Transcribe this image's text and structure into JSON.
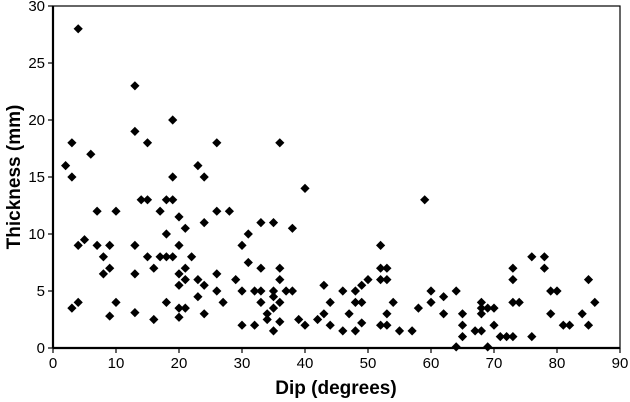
{
  "chart_data": {
    "type": "scatter",
    "title": "",
    "xlabel": "Dip (degrees)",
    "ylabel": "Thickness (mm)",
    "xlim": [
      0,
      90
    ],
    "ylim": [
      0,
      30
    ],
    "x_ticks": [
      0,
      10,
      20,
      30,
      40,
      50,
      60,
      70,
      80,
      90
    ],
    "y_ticks": [
      0,
      5,
      10,
      15,
      20,
      25,
      30
    ],
    "grid": false,
    "legend": null,
    "marker": "diamond",
    "marker_color": "#000000",
    "points": [
      [
        2,
        16
      ],
      [
        3,
        18
      ],
      [
        3,
        15
      ],
      [
        4,
        28
      ],
      [
        6,
        17
      ],
      [
        3,
        3.5
      ],
      [
        4,
        4
      ],
      [
        4,
        9
      ],
      [
        5,
        9.5
      ],
      [
        7,
        12
      ],
      [
        7,
        9
      ],
      [
        8,
        8
      ],
      [
        8,
        6.5
      ],
      [
        9,
        9
      ],
      [
        9,
        7
      ],
      [
        9,
        2.8
      ],
      [
        10,
        12
      ],
      [
        10,
        4
      ],
      [
        13,
        23
      ],
      [
        13,
        19
      ],
      [
        15,
        18
      ],
      [
        13,
        9
      ],
      [
        13,
        6.5
      ],
      [
        13,
        3.1
      ],
      [
        14,
        13
      ],
      [
        15,
        13
      ],
      [
        15,
        8
      ],
      [
        16,
        7
      ],
      [
        16,
        2.5
      ],
      [
        17,
        12
      ],
      [
        17,
        8
      ],
      [
        18,
        13
      ],
      [
        18,
        10
      ],
      [
        18,
        8
      ],
      [
        18,
        4
      ],
      [
        19,
        20
      ],
      [
        19,
        15
      ],
      [
        19,
        13
      ],
      [
        19,
        8
      ],
      [
        20,
        11.5
      ],
      [
        20,
        9
      ],
      [
        20,
        6.5
      ],
      [
        20,
        5.5
      ],
      [
        20,
        3.5
      ],
      [
        20,
        2.7
      ],
      [
        21,
        10.5
      ],
      [
        21,
        7
      ],
      [
        21,
        6
      ],
      [
        21,
        3.5
      ],
      [
        22,
        8
      ],
      [
        23,
        16
      ],
      [
        23,
        6
      ],
      [
        23,
        4.5
      ],
      [
        24,
        15
      ],
      [
        24,
        11
      ],
      [
        24,
        5.5
      ],
      [
        24,
        3
      ],
      [
        26,
        18
      ],
      [
        26,
        12
      ],
      [
        26,
        6.5
      ],
      [
        26,
        5
      ],
      [
        27,
        4
      ],
      [
        28,
        12
      ],
      [
        29,
        6
      ],
      [
        30,
        9
      ],
      [
        30,
        5
      ],
      [
        30,
        2
      ],
      [
        31,
        10
      ],
      [
        31,
        7.5
      ],
      [
        32,
        5
      ],
      [
        32,
        2
      ],
      [
        33,
        11
      ],
      [
        33,
        7
      ],
      [
        33,
        5
      ],
      [
        33,
        4
      ],
      [
        34,
        3
      ],
      [
        34,
        2.5
      ],
      [
        35,
        11
      ],
      [
        35,
        5
      ],
      [
        35,
        4.5
      ],
      [
        35,
        3.5
      ],
      [
        35,
        1.5
      ],
      [
        36,
        18
      ],
      [
        36,
        7
      ],
      [
        36,
        6
      ],
      [
        36,
        4
      ],
      [
        36,
        2.3
      ],
      [
        37,
        5
      ],
      [
        38,
        10.5
      ],
      [
        38,
        5
      ],
      [
        39,
        2.5
      ],
      [
        40,
        14
      ],
      [
        40,
        2
      ],
      [
        42,
        2.5
      ],
      [
        43,
        5.5
      ],
      [
        43,
        3
      ],
      [
        44,
        4
      ],
      [
        44,
        2
      ],
      [
        46,
        5
      ],
      [
        46,
        1.5
      ],
      [
        47,
        3
      ],
      [
        48,
        5
      ],
      [
        48,
        4
      ],
      [
        48,
        1.5
      ],
      [
        49,
        5.5
      ],
      [
        49,
        4
      ],
      [
        49,
        2.2
      ],
      [
        50,
        6
      ],
      [
        52,
        9
      ],
      [
        52,
        7
      ],
      [
        52,
        6
      ],
      [
        52,
        2
      ],
      [
        53,
        7
      ],
      [
        53,
        6
      ],
      [
        53,
        3
      ],
      [
        53,
        2
      ],
      [
        54,
        4
      ],
      [
        55,
        1.5
      ],
      [
        57,
        1.5
      ],
      [
        58,
        3.5
      ],
      [
        59,
        13
      ],
      [
        60,
        5
      ],
      [
        60,
        4
      ],
      [
        62,
        4.5
      ],
      [
        62,
        3
      ],
      [
        64,
        5
      ],
      [
        64,
        0.1
      ],
      [
        65,
        3
      ],
      [
        65,
        2
      ],
      [
        65,
        1
      ],
      [
        67,
        1.5
      ],
      [
        68,
        4
      ],
      [
        68,
        3.5
      ],
      [
        68,
        3
      ],
      [
        68,
        1.5
      ],
      [
        69,
        3.5
      ],
      [
        69,
        0.1
      ],
      [
        70,
        3.5
      ],
      [
        70,
        2
      ],
      [
        71,
        1
      ],
      [
        72,
        1
      ],
      [
        73,
        7
      ],
      [
        73,
        6
      ],
      [
        73,
        4
      ],
      [
        73,
        1
      ],
      [
        74,
        4
      ],
      [
        76,
        8
      ],
      [
        76,
        1
      ],
      [
        78,
        8
      ],
      [
        78,
        7
      ],
      [
        79,
        5
      ],
      [
        79,
        3
      ],
      [
        80,
        5
      ],
      [
        81,
        2
      ],
      [
        82,
        2
      ],
      [
        84,
        3
      ],
      [
        85,
        6
      ],
      [
        85,
        2
      ],
      [
        86,
        4
      ]
    ]
  }
}
